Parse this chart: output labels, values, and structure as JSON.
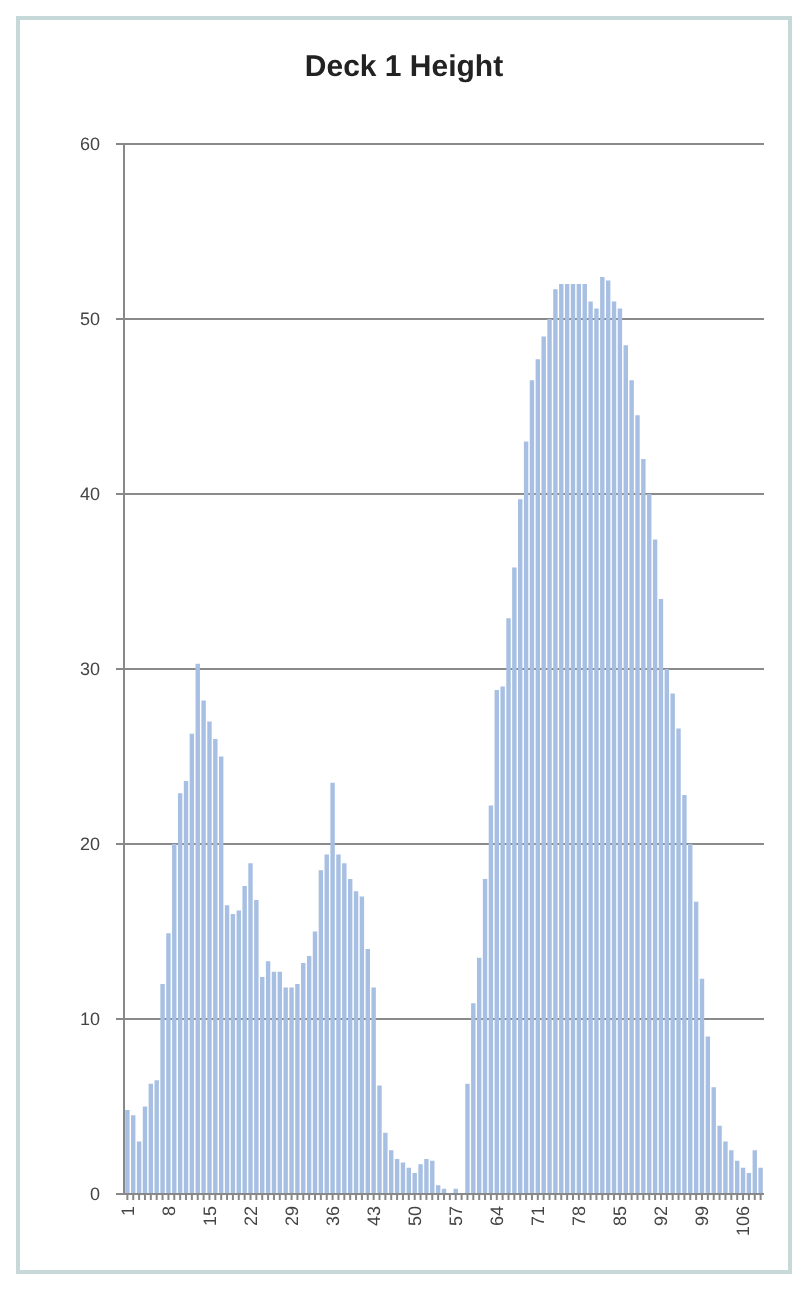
{
  "chart_data": {
    "type": "bar",
    "title": "Deck 1 Height",
    "categories": [
      "1",
      null,
      null,
      null,
      null,
      null,
      null,
      "8",
      null,
      null,
      null,
      null,
      null,
      null,
      "15",
      null,
      null,
      null,
      null,
      null,
      null,
      "22",
      null,
      null,
      null,
      null,
      null,
      null,
      "29",
      null,
      null,
      null,
      null,
      null,
      null,
      "36",
      null,
      null,
      null,
      null,
      null,
      null,
      "43",
      null,
      null,
      null,
      null,
      null,
      null,
      "50",
      null,
      null,
      null,
      null,
      null,
      null,
      "57",
      null,
      null,
      null,
      null,
      null,
      null,
      "64",
      null,
      null,
      null,
      null,
      null,
      null,
      "71",
      null,
      null,
      null,
      null,
      null,
      null,
      "78",
      null,
      null,
      null,
      null,
      null,
      null,
      "85",
      null,
      null,
      null,
      null,
      null,
      null,
      "92",
      null,
      null,
      null,
      null,
      null,
      null,
      "99",
      null,
      null,
      null,
      null,
      null,
      null,
      "106",
      null,
      null,
      null
    ],
    "values": [
      4.8,
      4.5,
      3,
      5,
      6.3,
      6.5,
      12,
      14.9,
      20,
      22.9,
      23.6,
      26.3,
      30.3,
      28.2,
      27,
      26,
      25,
      16.5,
      16,
      16.2,
      17.6,
      18.9,
      16.8,
      12.4,
      13.3,
      12.7,
      12.7,
      11.8,
      11.8,
      12,
      13.2,
      13.6,
      15,
      18.5,
      19.4,
      23.5,
      19.4,
      18.9,
      18,
      17.3,
      17,
      14,
      11.8,
      6.2,
      3.5,
      2.5,
      2,
      1.8,
      1.5,
      1.2,
      1.7,
      2,
      1.9,
      0.5,
      0.3,
      0,
      0.3,
      0,
      6.3,
      10.9,
      13.5,
      18,
      22.2,
      28.8,
      29,
      32.9,
      35.8,
      39.7,
      43,
      46.5,
      47.7,
      49,
      50,
      51.7,
      52,
      52,
      52,
      52,
      52,
      51,
      50.6,
      52.4,
      52.2,
      51,
      50.6,
      48.5,
      46.5,
      44.5,
      42,
      40,
      37.4,
      34,
      30,
      28.6,
      26.6,
      22.8,
      20,
      16.7,
      12.3,
      9,
      6.1,
      3.9,
      3,
      2.5,
      1.9,
      1.5,
      1.2,
      2.5,
      1.5
    ],
    "color": "#a7bfe2",
    "ylim": [
      0,
      60
    ],
    "yticks": [
      0,
      10,
      20,
      30,
      40,
      50,
      60
    ],
    "grid": "y"
  }
}
